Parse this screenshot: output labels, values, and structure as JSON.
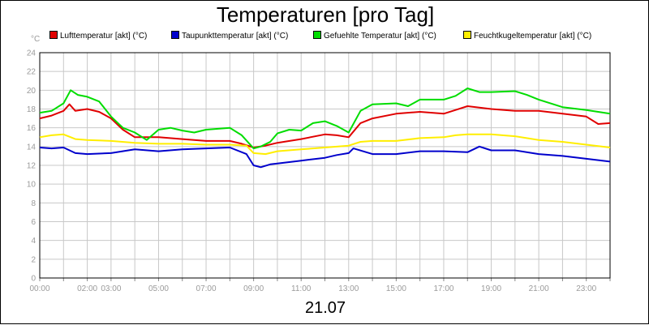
{
  "chart_data": {
    "type": "line",
    "title": "Temperaturen [pro Tag]",
    "date": "21.07",
    "y_unit": "°C",
    "ylim": [
      0,
      24
    ],
    "yticks": [
      0,
      2,
      4,
      6,
      8,
      10,
      12,
      14,
      16,
      18,
      20,
      22,
      24
    ],
    "xlim": [
      0,
      24
    ],
    "xtick_labels": [
      {
        "h": 0,
        "label": "00:00"
      },
      {
        "h": 2,
        "label": "02:00"
      },
      {
        "h": 3,
        "label": "03:00"
      },
      {
        "h": 5,
        "label": "05:00"
      },
      {
        "h": 7,
        "label": "07:00"
      },
      {
        "h": 9,
        "label": "09:00"
      },
      {
        "h": 11,
        "label": "11:00"
      },
      {
        "h": 13,
        "label": "13:00"
      },
      {
        "h": 15,
        "label": "15:00"
      },
      {
        "h": 17,
        "label": "17:00"
      },
      {
        "h": 19,
        "label": "19:00"
      },
      {
        "h": 21,
        "label": "21:00"
      },
      {
        "h": 23,
        "label": "23:00"
      }
    ],
    "grid": true,
    "legend_position": "top",
    "series": [
      {
        "name": "Lufttemperatur [akt] (°C)",
        "color": "#e00000",
        "x": [
          0,
          0.5,
          1,
          1.25,
          1.5,
          2,
          2.5,
          3,
          3.5,
          4,
          4.5,
          5,
          6,
          7,
          8,
          8.5,
          9,
          9.5,
          10,
          11,
          12,
          12.5,
          13,
          13.5,
          14,
          15,
          16,
          17,
          17.5,
          18,
          19,
          20,
          21,
          22,
          23,
          23.5,
          24
        ],
        "y": [
          17.0,
          17.3,
          17.8,
          18.5,
          17.8,
          18.0,
          17.7,
          17.0,
          15.8,
          15.0,
          15.0,
          15.0,
          14.8,
          14.6,
          14.6,
          14.3,
          13.9,
          14.1,
          14.4,
          14.8,
          15.3,
          15.2,
          15.0,
          16.5,
          17.0,
          17.5,
          17.7,
          17.5,
          17.9,
          18.3,
          18.0,
          17.8,
          17.8,
          17.5,
          17.2,
          16.4,
          16.5
        ]
      },
      {
        "name": "Taupunkttemperatur [akt] (°C)",
        "color": "#0000cc",
        "x": [
          0,
          0.5,
          1,
          1.5,
          2,
          3,
          4,
          5,
          6,
          7,
          8,
          8.7,
          9,
          9.3,
          9.7,
          10,
          11,
          12,
          12.5,
          13,
          13.2,
          14,
          15,
          16,
          17,
          18,
          18.5,
          19,
          20,
          21,
          22,
          23,
          24
        ],
        "y": [
          13.9,
          13.8,
          13.9,
          13.3,
          13.2,
          13.3,
          13.7,
          13.5,
          13.7,
          13.8,
          13.9,
          13.2,
          12.0,
          11.8,
          12.1,
          12.2,
          12.5,
          12.8,
          13.1,
          13.3,
          13.8,
          13.2,
          13.2,
          13.5,
          13.5,
          13.4,
          14.0,
          13.6,
          13.6,
          13.2,
          13.0,
          12.7,
          12.4
        ]
      },
      {
        "name": "Gefuehlte Temperatur [akt] (°C)",
        "color": "#00dd00",
        "x": [
          0,
          0.5,
          1,
          1.3,
          1.6,
          2,
          2.5,
          3,
          3.5,
          4,
          4.5,
          5,
          5.5,
          6,
          6.5,
          7,
          8,
          8.5,
          9,
          9.3,
          9.7,
          10,
          10.5,
          11,
          11.5,
          12,
          12.5,
          13,
          13.5,
          14,
          15,
          15.5,
          16,
          17,
          17.5,
          18,
          18.5,
          19,
          20,
          20.5,
          21,
          22,
          23,
          24
        ],
        "y": [
          17.6,
          17.8,
          18.6,
          20.0,
          19.5,
          19.3,
          18.8,
          17.2,
          16.0,
          15.5,
          14.7,
          15.8,
          16.0,
          15.7,
          15.5,
          15.8,
          16.0,
          15.2,
          13.8,
          14.0,
          14.5,
          15.4,
          15.8,
          15.7,
          16.5,
          16.7,
          16.2,
          15.5,
          17.8,
          18.5,
          18.6,
          18.3,
          19.0,
          19.0,
          19.4,
          20.2,
          19.8,
          19.8,
          19.9,
          19.5,
          19.0,
          18.2,
          17.9,
          17.5
        ]
      },
      {
        "name": "Feuchtkugeltemperatur [akt] (°C)",
        "color": "#ffee00",
        "x": [
          0,
          0.5,
          1,
          1.5,
          2,
          3,
          4,
          5,
          6,
          7,
          8,
          8.7,
          9,
          9.5,
          10,
          11,
          12,
          13,
          13.5,
          14,
          15,
          16,
          17,
          17.5,
          18,
          19,
          20,
          21,
          22,
          23,
          24
        ],
        "y": [
          15.0,
          15.2,
          15.3,
          14.8,
          14.7,
          14.6,
          14.4,
          14.3,
          14.3,
          14.2,
          14.2,
          14.1,
          13.3,
          13.2,
          13.5,
          13.7,
          13.9,
          14.1,
          14.5,
          14.6,
          14.6,
          14.9,
          15.0,
          15.2,
          15.3,
          15.3,
          15.1,
          14.7,
          14.5,
          14.2,
          13.9
        ]
      }
    ]
  }
}
